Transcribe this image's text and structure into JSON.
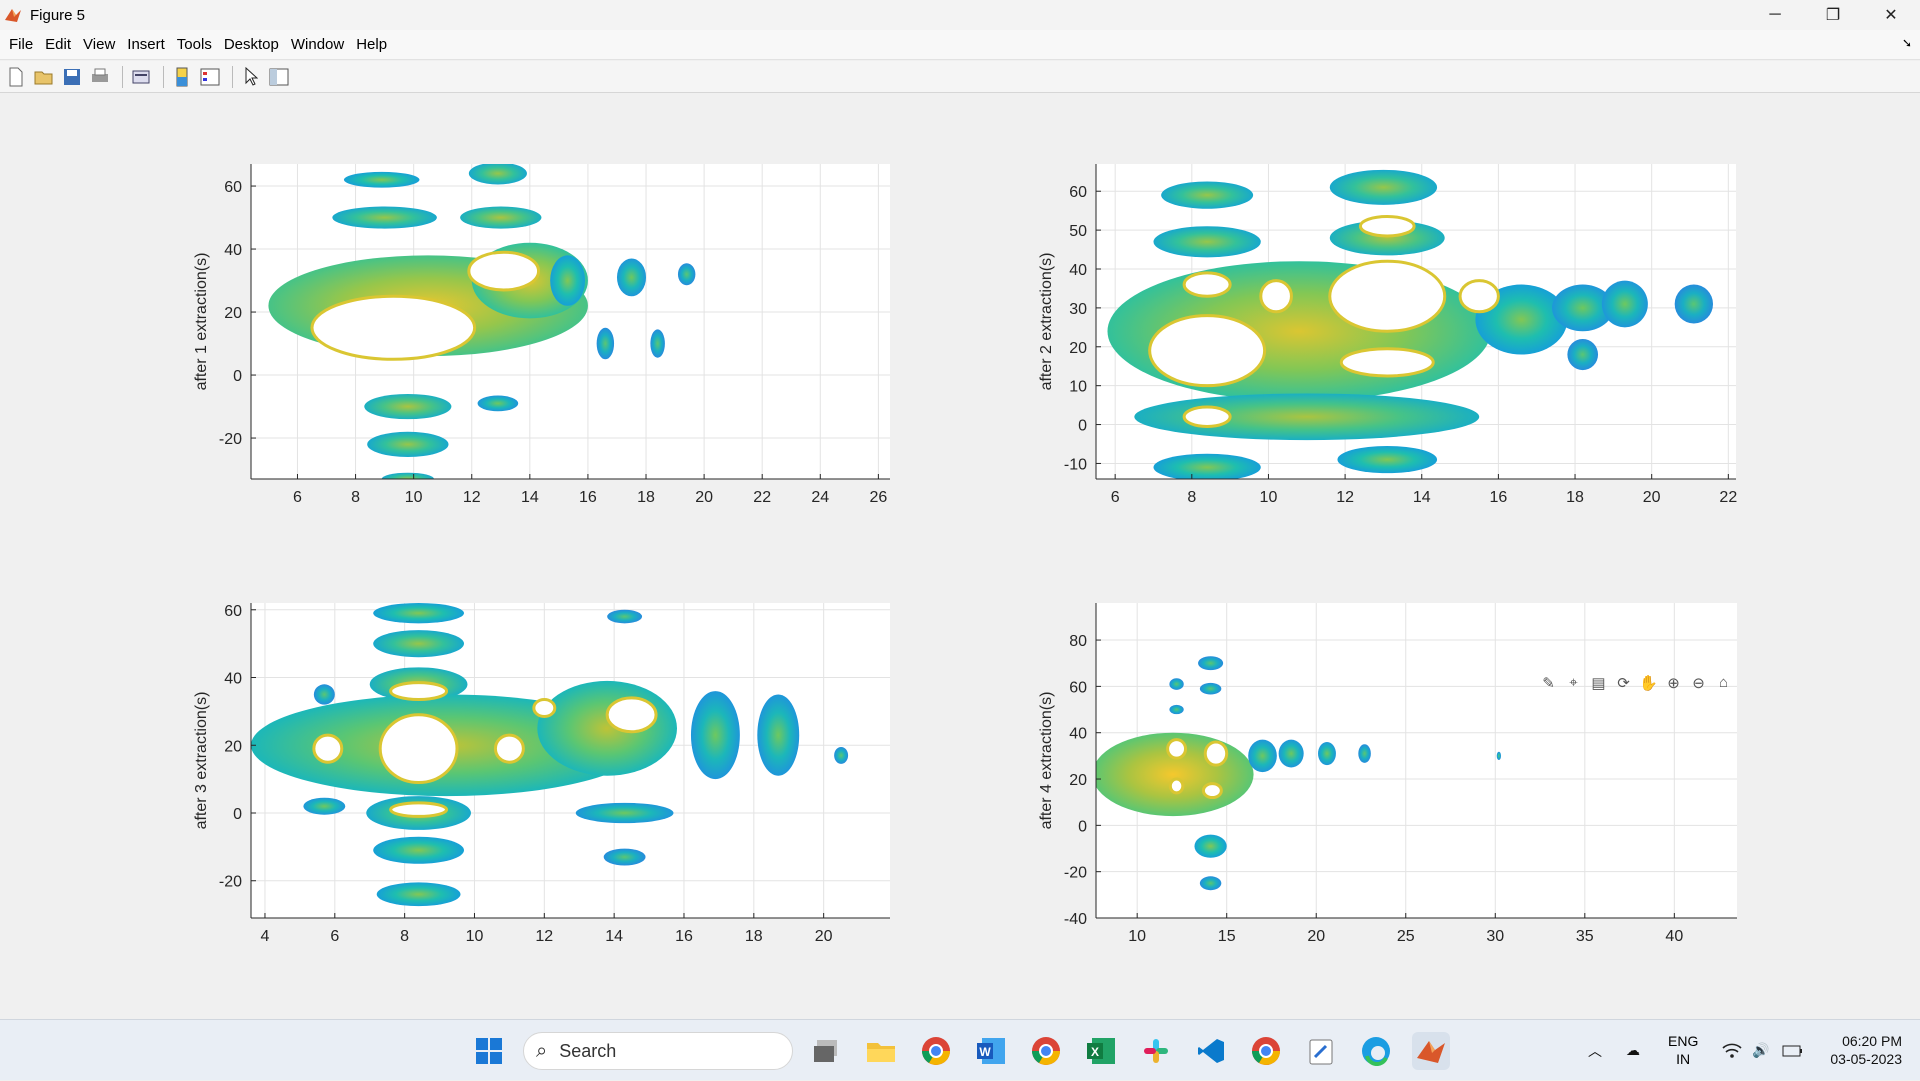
{
  "window": {
    "title": "Figure 5",
    "minimize": "─",
    "maximize": "❐",
    "close": "✕"
  },
  "menu": [
    {
      "label": "File"
    },
    {
      "label": "Edit"
    },
    {
      "label": "View"
    },
    {
      "label": "Insert"
    },
    {
      "label": "Tools"
    },
    {
      "label": "Desktop"
    },
    {
      "label": "Window"
    },
    {
      "label": "Help"
    }
  ],
  "toolbar": {
    "icons": [
      "new-figure-icon",
      "open-file-icon",
      "save-icon",
      "print-icon",
      "print-preview-icon",
      "colorbar-icon",
      "legend-icon",
      "pointer-icon",
      "property-inspector-icon"
    ]
  },
  "axes_toolbar": {
    "icons": [
      "brush-icon",
      "data-tips-icon",
      "export-icon",
      "rotate-icon",
      "pan-icon",
      "zoom-in-icon",
      "zoom-out-icon",
      "home-icon"
    ]
  },
  "chart_data": [
    {
      "type": "heatmap",
      "title": "",
      "xlabel": "",
      "ylabel": "after 1 extraction(s)",
      "xlim": [
        4.4,
        26.4
      ],
      "ylim": [
        -33,
        67
      ],
      "xticks": [
        6,
        8,
        10,
        12,
        14,
        16,
        18,
        20,
        22,
        24,
        26
      ],
      "yticks": [
        60,
        40,
        20,
        0,
        -20
      ],
      "grid": true,
      "colormap": "parula",
      "blobs": [
        {
          "x": 8.9,
          "y": 62,
          "rx": 1.3,
          "ry": 2.5,
          "level": 0.2
        },
        {
          "x": 12.9,
          "y": 64,
          "rx": 1.0,
          "ry": 3.5,
          "level": 0.25
        },
        {
          "x": 9.0,
          "y": 50,
          "rx": 1.8,
          "ry": 3.5,
          "level": 0.25
        },
        {
          "x": 13.0,
          "y": 50,
          "rx": 1.4,
          "ry": 3.5,
          "level": 0.3
        },
        {
          "x": 10.5,
          "y": 22,
          "rx": 5.5,
          "ry": 16,
          "level": 0.5
        },
        {
          "x": 14.0,
          "y": 30,
          "rx": 2.0,
          "ry": 12,
          "level": 0.45
        },
        {
          "x": 15.3,
          "y": 30,
          "rx": 0.6,
          "ry": 8,
          "level": 0.2
        },
        {
          "x": 17.5,
          "y": 31,
          "rx": 0.5,
          "ry": 6,
          "level": 0.15
        },
        {
          "x": 19.4,
          "y": 32,
          "rx": 0.3,
          "ry": 3.5,
          "level": 0.1
        },
        {
          "x": 16.6,
          "y": 10,
          "rx": 0.3,
          "ry": 5,
          "level": 0.1
        },
        {
          "x": 18.4,
          "y": 10,
          "rx": 0.25,
          "ry": 4.5,
          "level": 0.1
        },
        {
          "x": 9.8,
          "y": -10,
          "rx": 1.5,
          "ry": 4,
          "level": 0.3
        },
        {
          "x": 12.9,
          "y": -9,
          "rx": 0.7,
          "ry": 2.5,
          "level": 0.15
        },
        {
          "x": 9.8,
          "y": -22,
          "rx": 1.4,
          "ry": 4,
          "level": 0.25
        },
        {
          "x": 9.8,
          "y": -33,
          "rx": 0.9,
          "ry": 2,
          "level": 0.25
        }
      ],
      "holes": [
        {
          "x": 13.1,
          "y": 33,
          "rx": 1.2,
          "ry": 6
        },
        {
          "x": 9.3,
          "y": 15,
          "rx": 2.8,
          "ry": 10
        }
      ]
    },
    {
      "type": "heatmap",
      "title": "",
      "xlabel": "",
      "ylabel": "after 2 extraction(s)",
      "xlim": [
        5.5,
        22.2
      ],
      "ylim": [
        -14,
        67
      ],
      "xticks": [
        6,
        8,
        10,
        12,
        14,
        16,
        18,
        20,
        22
      ],
      "yticks": [
        60,
        50,
        40,
        30,
        20,
        10,
        0,
        -10
      ],
      "grid": true,
      "colormap": "parula",
      "blobs": [
        {
          "x": 8.4,
          "y": 59,
          "rx": 1.2,
          "ry": 3.5,
          "level": 0.25
        },
        {
          "x": 13.0,
          "y": 61,
          "rx": 1.4,
          "ry": 4.5,
          "level": 0.25
        },
        {
          "x": 8.4,
          "y": 47,
          "rx": 1.4,
          "ry": 4,
          "level": 0.25
        },
        {
          "x": 13.1,
          "y": 48,
          "rx": 1.5,
          "ry": 4.5,
          "level": 0.3
        },
        {
          "x": 10.8,
          "y": 24,
          "rx": 5.0,
          "ry": 18,
          "level": 0.45
        },
        {
          "x": 16.6,
          "y": 27,
          "rx": 1.2,
          "ry": 9,
          "level": 0.2
        },
        {
          "x": 18.2,
          "y": 30,
          "rx": 0.8,
          "ry": 6,
          "level": 0.15
        },
        {
          "x": 19.3,
          "y": 31,
          "rx": 0.6,
          "ry": 6,
          "level": 0.15
        },
        {
          "x": 21.1,
          "y": 31,
          "rx": 0.5,
          "ry": 5,
          "level": 0.1
        },
        {
          "x": 18.2,
          "y": 18,
          "rx": 0.4,
          "ry": 4,
          "level": 0.1
        },
        {
          "x": 11.0,
          "y": 2,
          "rx": 4.5,
          "ry": 6,
          "level": 0.3
        },
        {
          "x": 8.4,
          "y": -11,
          "rx": 1.4,
          "ry": 3.5,
          "level": 0.2
        },
        {
          "x": 13.1,
          "y": -9,
          "rx": 1.3,
          "ry": 3.5,
          "level": 0.2
        }
      ],
      "holes": [
        {
          "x": 8.4,
          "y": 19,
          "rx": 1.5,
          "ry": 9
        },
        {
          "x": 13.1,
          "y": 33,
          "rx": 1.5,
          "ry": 9
        },
        {
          "x": 13.1,
          "y": 16,
          "rx": 1.2,
          "ry": 3.5
        },
        {
          "x": 8.4,
          "y": 36,
          "rx": 0.6,
          "ry": 3
        },
        {
          "x": 10.2,
          "y": 33,
          "rx": 0.4,
          "ry": 4
        },
        {
          "x": 15.5,
          "y": 33,
          "rx": 0.5,
          "ry": 4
        },
        {
          "x": 13.1,
          "y": 51,
          "rx": 0.7,
          "ry": 2.5
        },
        {
          "x": 8.4,
          "y": 2,
          "rx": 0.6,
          "ry": 2.5
        }
      ]
    },
    {
      "type": "heatmap",
      "title": "",
      "xlabel": "",
      "ylabel": "after 3 extraction(s)",
      "xlim": [
        3.6,
        21.9
      ],
      "ylim": [
        -31,
        62
      ],
      "xticks": [
        4,
        6,
        8,
        10,
        12,
        14,
        16,
        18,
        20
      ],
      "yticks": [
        60,
        40,
        20,
        0,
        -20
      ],
      "grid": true,
      "colormap": "parula",
      "blobs": [
        {
          "x": 8.4,
          "y": 59,
          "rx": 1.3,
          "ry": 3,
          "level": 0.2
        },
        {
          "x": 8.4,
          "y": 50,
          "rx": 1.3,
          "ry": 4,
          "level": 0.25
        },
        {
          "x": 8.4,
          "y": 38,
          "rx": 1.4,
          "ry": 5,
          "level": 0.3
        },
        {
          "x": 14.3,
          "y": 58,
          "rx": 0.5,
          "ry": 2,
          "level": 0.1
        },
        {
          "x": 9.2,
          "y": 20,
          "rx": 5.6,
          "ry": 15,
          "level": 0.35
        },
        {
          "x": 13.8,
          "y": 25,
          "rx": 2.0,
          "ry": 14,
          "level": 0.35
        },
        {
          "x": 16.9,
          "y": 23,
          "rx": 0.7,
          "ry": 13,
          "level": 0.15
        },
        {
          "x": 18.7,
          "y": 23,
          "rx": 0.6,
          "ry": 12,
          "level": 0.15
        },
        {
          "x": 20.5,
          "y": 17,
          "rx": 0.2,
          "ry": 2.5,
          "level": 0.1
        },
        {
          "x": 5.7,
          "y": 35,
          "rx": 0.3,
          "ry": 3,
          "level": 0.1
        },
        {
          "x": 5.7,
          "y": 2,
          "rx": 0.6,
          "ry": 2.5,
          "level": 0.15
        },
        {
          "x": 8.4,
          "y": 0,
          "rx": 1.5,
          "ry": 5,
          "level": 0.25
        },
        {
          "x": 14.3,
          "y": 0,
          "rx": 1.4,
          "ry": 3,
          "level": 0.15
        },
        {
          "x": 8.4,
          "y": -11,
          "rx": 1.3,
          "ry": 4,
          "level": 0.2
        },
        {
          "x": 14.3,
          "y": -13,
          "rx": 0.6,
          "ry": 2.5,
          "level": 0.1
        },
        {
          "x": 8.4,
          "y": -24,
          "rx": 1.2,
          "ry": 3.5,
          "level": 0.2
        }
      ],
      "holes": [
        {
          "x": 8.4,
          "y": 19,
          "rx": 1.1,
          "ry": 10
        },
        {
          "x": 14.5,
          "y": 29,
          "rx": 0.7,
          "ry": 5
        },
        {
          "x": 5.8,
          "y": 19,
          "rx": 0.4,
          "ry": 4
        },
        {
          "x": 11.0,
          "y": 19,
          "rx": 0.4,
          "ry": 4
        },
        {
          "x": 8.4,
          "y": 36,
          "rx": 0.8,
          "ry": 2.5
        },
        {
          "x": 12.0,
          "y": 31,
          "rx": 0.3,
          "ry": 2.5
        },
        {
          "x": 8.4,
          "y": 1,
          "rx": 0.8,
          "ry": 2
        }
      ]
    },
    {
      "type": "heatmap",
      "title": "",
      "xlabel": "",
      "ylabel": "after 4 extraction(s)",
      "xlim": [
        7.7,
        43.5
      ],
      "ylim": [
        -40,
        96
      ],
      "xticks": [
        10,
        15,
        20,
        25,
        30,
        35,
        40
      ],
      "yticks": [
        80,
        60,
        40,
        20,
        0,
        -20,
        -40
      ],
      "grid": true,
      "colormap": "parula",
      "blobs": [
        {
          "x": 12.0,
          "y": 22,
          "rx": 4.5,
          "ry": 18,
          "level": 0.55
        },
        {
          "x": 14.1,
          "y": 70,
          "rx": 0.7,
          "ry": 3,
          "level": 0.1
        },
        {
          "x": 12.2,
          "y": 61,
          "rx": 0.4,
          "ry": 2.5,
          "level": 0.1
        },
        {
          "x": 14.1,
          "y": 59,
          "rx": 0.6,
          "ry": 2.5,
          "level": 0.1
        },
        {
          "x": 12.2,
          "y": 50,
          "rx": 0.4,
          "ry": 2,
          "level": 0.1
        },
        {
          "x": 17.0,
          "y": 30,
          "rx": 0.8,
          "ry": 7,
          "level": 0.15
        },
        {
          "x": 18.6,
          "y": 31,
          "rx": 0.7,
          "ry": 6,
          "level": 0.15
        },
        {
          "x": 20.6,
          "y": 31,
          "rx": 0.5,
          "ry": 5,
          "level": 0.15
        },
        {
          "x": 22.7,
          "y": 31,
          "rx": 0.35,
          "ry": 4,
          "level": 0.1
        },
        {
          "x": 30.2,
          "y": 30,
          "rx": 0.12,
          "ry": 1.8,
          "level": 0.1
        },
        {
          "x": 14.1,
          "y": -9,
          "rx": 0.9,
          "ry": 5,
          "level": 0.2
        },
        {
          "x": 14.1,
          "y": -25,
          "rx": 0.6,
          "ry": 3,
          "level": 0.1
        }
      ],
      "holes": [
        {
          "x": 14.4,
          "y": 31,
          "rx": 0.6,
          "ry": 5
        },
        {
          "x": 12.2,
          "y": 33,
          "rx": 0.5,
          "ry": 4
        },
        {
          "x": 14.2,
          "y": 15,
          "rx": 0.5,
          "ry": 3
        },
        {
          "x": 12.2,
          "y": 17,
          "rx": 0.35,
          "ry": 3
        }
      ]
    }
  ],
  "taskbar": {
    "search_label": "Search",
    "apps": [
      "start-icon",
      "search-icon",
      "task-view-icon",
      "file-explorer-icon",
      "chrome-icon",
      "word-icon",
      "chrome-profile-icon",
      "excel-icon",
      "slack-icon",
      "vscode-icon",
      "chrome-profile-2-icon",
      "notepad-icon",
      "edge-icon",
      "matlab-icon"
    ],
    "lang_top": "ENG",
    "lang_bottom": "IN",
    "time": "06:20 PM",
    "date": "03-05-2023"
  }
}
